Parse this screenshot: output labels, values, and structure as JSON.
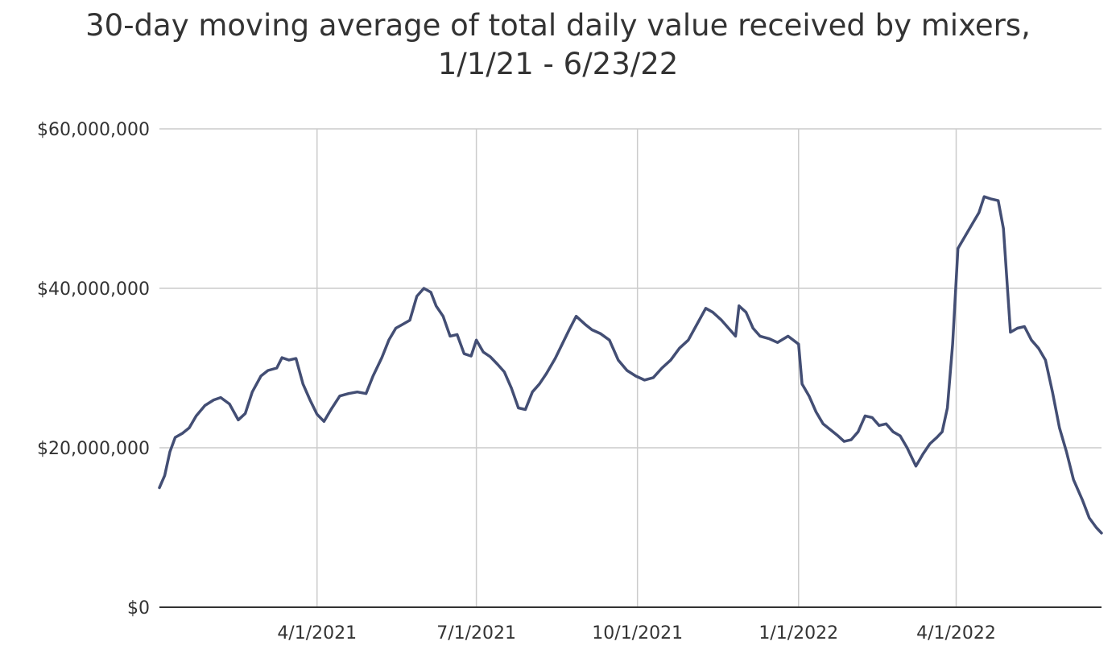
{
  "chart_data": {
    "type": "line",
    "title": "30-day moving average of total daily value received by mixers,",
    "subtitle": "1/1/21 - 6/23/22",
    "xlabel": "",
    "ylabel": "",
    "ylim": [
      0,
      60000000
    ],
    "xlim": [
      "2021-01-01",
      "2022-06-23"
    ],
    "grid": true,
    "legend": "none",
    "y_ticks": [
      {
        "value": 0,
        "label": "$0"
      },
      {
        "value": 20000000,
        "label": "$20,000,000"
      },
      {
        "value": 40000000,
        "label": "$40,000,000"
      },
      {
        "value": 60000000,
        "label": "$60,000,000"
      }
    ],
    "x_ticks": [
      {
        "date": "2021-04-01",
        "label": "4/1/2021"
      },
      {
        "date": "2021-07-01",
        "label": "7/1/2021"
      },
      {
        "date": "2021-10-01",
        "label": "10/1/2021"
      },
      {
        "date": "2022-01-01",
        "label": "1/1/2022"
      },
      {
        "date": "2022-04-01",
        "label": "4/1/2022"
      }
    ],
    "series": [
      {
        "color": "#434e74",
        "points": [
          [
            "2021-01-01",
            15000000
          ],
          [
            "2021-01-04",
            16500000
          ],
          [
            "2021-01-07",
            19500000
          ],
          [
            "2021-01-10",
            21300000
          ],
          [
            "2021-01-14",
            21800000
          ],
          [
            "2021-01-18",
            22500000
          ],
          [
            "2021-01-22",
            24000000
          ],
          [
            "2021-01-27",
            25300000
          ],
          [
            "2021-02-01",
            26000000
          ],
          [
            "2021-02-05",
            26300000
          ],
          [
            "2021-02-10",
            25500000
          ],
          [
            "2021-02-15",
            23500000
          ],
          [
            "2021-02-19",
            24300000
          ],
          [
            "2021-02-23",
            27000000
          ],
          [
            "2021-02-28",
            29000000
          ],
          [
            "2021-03-04",
            29700000
          ],
          [
            "2021-03-09",
            30000000
          ],
          [
            "2021-03-12",
            31300000
          ],
          [
            "2021-03-16",
            31000000
          ],
          [
            "2021-03-20",
            31200000
          ],
          [
            "2021-03-24",
            28000000
          ],
          [
            "2021-03-28",
            26000000
          ],
          [
            "2021-04-01",
            24200000
          ],
          [
            "2021-04-05",
            23300000
          ],
          [
            "2021-04-09",
            24800000
          ],
          [
            "2021-04-14",
            26500000
          ],
          [
            "2021-04-19",
            26800000
          ],
          [
            "2021-04-24",
            27000000
          ],
          [
            "2021-04-29",
            26800000
          ],
          [
            "2021-05-03",
            29000000
          ],
          [
            "2021-05-08",
            31300000
          ],
          [
            "2021-05-12",
            33500000
          ],
          [
            "2021-05-16",
            35000000
          ],
          [
            "2021-05-20",
            35500000
          ],
          [
            "2021-05-24",
            36000000
          ],
          [
            "2021-05-28",
            39000000
          ],
          [
            "2021-06-01",
            40000000
          ],
          [
            "2021-06-05",
            39500000
          ],
          [
            "2021-06-08",
            37800000
          ],
          [
            "2021-06-12",
            36500000
          ],
          [
            "2021-06-16",
            34000000
          ],
          [
            "2021-06-20",
            34200000
          ],
          [
            "2021-06-24",
            31800000
          ],
          [
            "2021-06-28",
            31500000
          ],
          [
            "2021-07-01",
            33500000
          ],
          [
            "2021-07-05",
            32000000
          ],
          [
            "2021-07-09",
            31400000
          ],
          [
            "2021-07-13",
            30500000
          ],
          [
            "2021-07-17",
            29500000
          ],
          [
            "2021-07-21",
            27500000
          ],
          [
            "2021-07-25",
            25000000
          ],
          [
            "2021-07-29",
            24800000
          ],
          [
            "2021-08-02",
            27000000
          ],
          [
            "2021-08-06",
            28000000
          ],
          [
            "2021-08-10",
            29300000
          ],
          [
            "2021-08-15",
            31200000
          ],
          [
            "2021-08-19",
            33000000
          ],
          [
            "2021-08-23",
            34800000
          ],
          [
            "2021-08-27",
            36500000
          ],
          [
            "2021-09-01",
            35500000
          ],
          [
            "2021-09-05",
            34800000
          ],
          [
            "2021-09-10",
            34300000
          ],
          [
            "2021-09-15",
            33500000
          ],
          [
            "2021-09-20",
            31000000
          ],
          [
            "2021-09-25",
            29700000
          ],
          [
            "2021-09-30",
            29000000
          ],
          [
            "2021-10-05",
            28500000
          ],
          [
            "2021-10-10",
            28800000
          ],
          [
            "2021-10-15",
            30000000
          ],
          [
            "2021-10-20",
            31000000
          ],
          [
            "2021-10-25",
            32500000
          ],
          [
            "2021-10-30",
            33500000
          ],
          [
            "2021-11-04",
            35500000
          ],
          [
            "2021-11-09",
            37500000
          ],
          [
            "2021-11-13",
            37000000
          ],
          [
            "2021-11-18",
            36000000
          ],
          [
            "2021-11-22",
            35000000
          ],
          [
            "2021-11-26",
            34000000
          ],
          [
            "2021-11-28",
            37800000
          ],
          [
            "2021-12-02",
            37000000
          ],
          [
            "2021-12-06",
            35000000
          ],
          [
            "2021-12-10",
            34000000
          ],
          [
            "2021-12-15",
            33700000
          ],
          [
            "2021-12-20",
            33200000
          ],
          [
            "2021-12-26",
            34000000
          ],
          [
            "2022-01-01",
            33000000
          ],
          [
            "2022-01-03",
            28000000
          ],
          [
            "2022-01-07",
            26500000
          ],
          [
            "2022-01-11",
            24500000
          ],
          [
            "2022-01-15",
            23000000
          ],
          [
            "2022-01-19",
            22300000
          ],
          [
            "2022-01-23",
            21600000
          ],
          [
            "2022-01-27",
            20800000
          ],
          [
            "2022-01-31",
            21000000
          ],
          [
            "2022-02-04",
            22000000
          ],
          [
            "2022-02-08",
            24000000
          ],
          [
            "2022-02-12",
            23800000
          ],
          [
            "2022-02-16",
            22800000
          ],
          [
            "2022-02-20",
            23000000
          ],
          [
            "2022-02-24",
            22000000
          ],
          [
            "2022-02-28",
            21500000
          ],
          [
            "2022-03-04",
            20000000
          ],
          [
            "2022-03-09",
            17700000
          ],
          [
            "2022-03-13",
            19200000
          ],
          [
            "2022-03-17",
            20500000
          ],
          [
            "2022-03-21",
            21300000
          ],
          [
            "2022-03-24",
            22000000
          ],
          [
            "2022-03-27",
            25000000
          ],
          [
            "2022-03-30",
            33000000
          ],
          [
            "2022-04-02",
            45000000
          ],
          [
            "2022-04-06",
            46500000
          ],
          [
            "2022-04-10",
            48000000
          ],
          [
            "2022-04-14",
            49500000
          ],
          [
            "2022-04-17",
            51500000
          ],
          [
            "2022-04-21",
            51200000
          ],
          [
            "2022-04-25",
            51000000
          ],
          [
            "2022-04-28",
            47500000
          ],
          [
            "2022-05-02",
            34500000
          ],
          [
            "2022-05-06",
            35000000
          ],
          [
            "2022-05-10",
            35200000
          ],
          [
            "2022-05-14",
            33500000
          ],
          [
            "2022-05-18",
            32500000
          ],
          [
            "2022-05-22",
            31000000
          ],
          [
            "2022-05-26",
            27000000
          ],
          [
            "2022-05-30",
            22500000
          ],
          [
            "2022-06-03",
            19500000
          ],
          [
            "2022-06-07",
            16000000
          ],
          [
            "2022-06-12",
            13500000
          ],
          [
            "2022-06-16",
            11200000
          ],
          [
            "2022-06-20",
            10000000
          ],
          [
            "2022-06-23",
            9300000
          ]
        ]
      }
    ]
  }
}
